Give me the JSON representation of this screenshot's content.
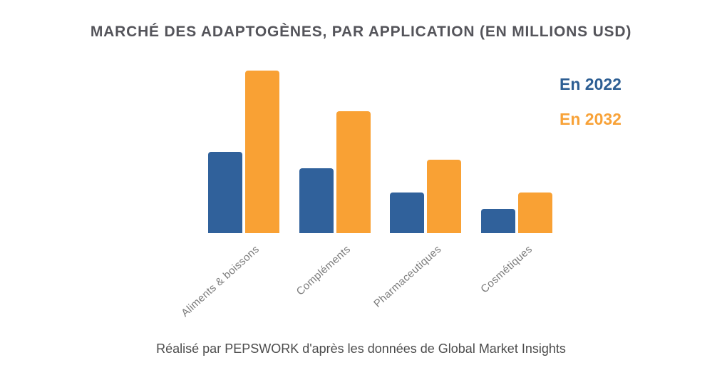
{
  "title": "MARCHÉ DES ADAPTOGÈNES, PAR APPLICATION (EN MILLIONS USD)",
  "legend": {
    "items": [
      {
        "label": "En 2022",
        "color": "#2d5e93"
      },
      {
        "label": "En 2032",
        "color": "#f8a238"
      }
    ]
  },
  "footer": "Réalisé par PEPSWORK d'après les données de Global Market Insights",
  "chart_data": {
    "type": "bar",
    "categories": [
      "Aliments & boissons",
      "Compléments",
      "Pharmaceutiques",
      "Cosmétiques"
    ],
    "series": [
      {
        "name": "En 2022",
        "color": "#30619b",
        "values": [
          4000,
          3200,
          2000,
          1200
        ]
      },
      {
        "name": "En 2032",
        "color": "#f9a134",
        "values": [
          8000,
          6000,
          3600,
          2000
        ]
      }
    ],
    "title": "MARCHÉ DES ADAPTOGÈNES, PAR APPLICATION (EN MILLIONS USD)",
    "xlabel": "",
    "ylabel": "",
    "ylim": [
      0,
      8000
    ],
    "grid": false,
    "legend_position": "top-right",
    "value_labels": false
  }
}
